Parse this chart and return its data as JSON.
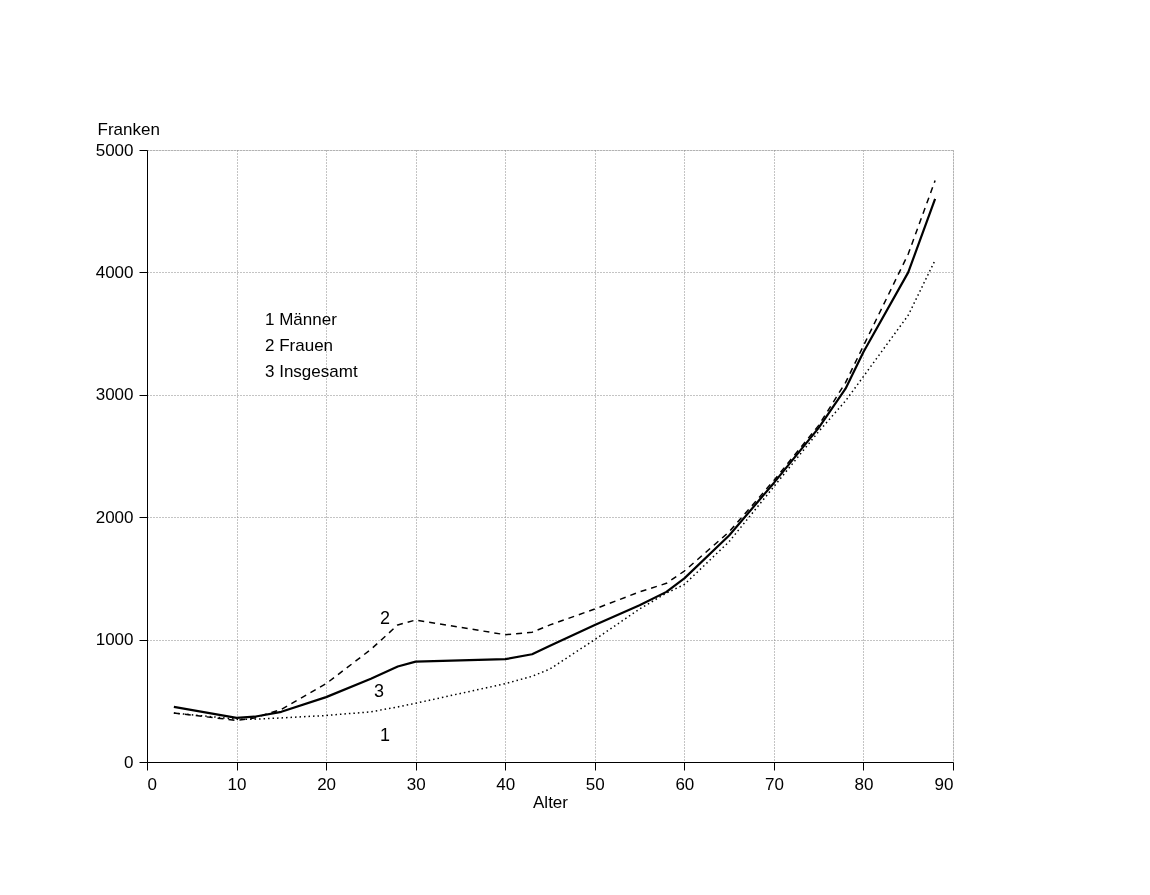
{
  "chart_data": {
    "type": "line",
    "xlabel": "Alter",
    "ylabel": "Franken",
    "x": [
      3,
      10,
      12,
      15,
      20,
      25,
      28,
      30,
      35,
      40,
      43,
      45,
      50,
      55,
      58,
      60,
      65,
      70,
      75,
      78,
      80,
      85,
      88
    ],
    "series": [
      {
        "name": "1",
        "color": "#000000",
        "line_style": "dotted",
        "values": [
          400,
          350,
          350,
          360,
          380,
          410,
          450,
          480,
          560,
          640,
          700,
          760,
          1000,
          1250,
          1380,
          1450,
          1800,
          2250,
          2700,
          2950,
          3150,
          3650,
          4100
        ]
      },
      {
        "name": "2",
        "color": "#000000",
        "line_style": "dashed",
        "values": [
          400,
          340,
          360,
          430,
          640,
          920,
          1120,
          1160,
          1100,
          1040,
          1060,
          1120,
          1250,
          1390,
          1460,
          1560,
          1880,
          2300,
          2750,
          3100,
          3400,
          4150,
          4750
        ]
      },
      {
        "name": "3",
        "color": "#000000",
        "line_style": "solid",
        "values": [
          450,
          360,
          370,
          410,
          530,
          680,
          780,
          820,
          830,
          840,
          880,
          950,
          1120,
          1280,
          1390,
          1500,
          1850,
          2280,
          2730,
          3050,
          3350,
          4000,
          4600
        ]
      }
    ],
    "xlim": [
      0,
      90
    ],
    "xticks": [
      0,
      10,
      20,
      30,
      40,
      50,
      60,
      70,
      80,
      90
    ],
    "ylim": [
      0,
      5000
    ],
    "yticks": [
      0,
      1000,
      2000,
      3000,
      4000,
      5000
    ],
    "grid": true,
    "marker": "none",
    "annotations": [
      "1  Männer",
      "2  Frauen",
      "3  Insgesamt"
    ]
  }
}
